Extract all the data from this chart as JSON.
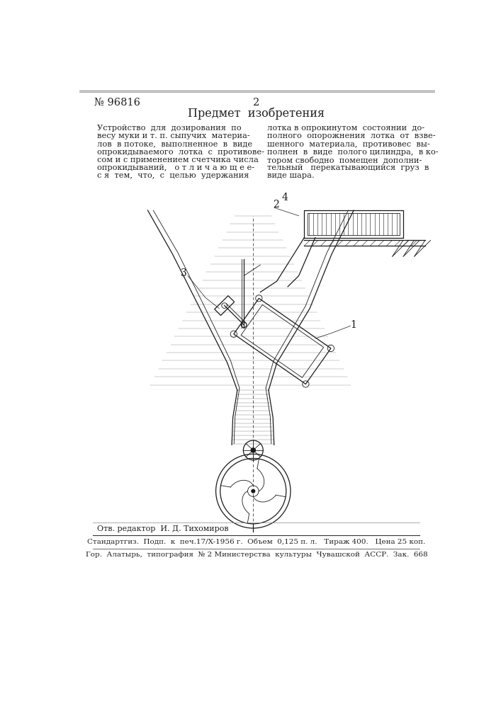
{
  "bg_color": "#ffffff",
  "header_line_color": "#000000",
  "text_color": "#222222",
  "patent_number": "№ 96816",
  "page_number": "2",
  "section_title": "Предмет  изобретения",
  "body_text_col1": "Устройство  для  дозирования  по\nвесу муки и т. п. сыпучих  материа-\nлов  в потоке,  выполненное  в  виде\nопрокидываемого  лотка  с  противове-\nсом и с применением счетчика числа\nопрокидываний,   о т л и ч а ю щ е е-\nс я  тем,  что,  с  целью  удержания",
  "body_text_col2": "лотка в опрокинутом  состоянии  до-\nполного  опорожнения  лотка  от  взве-\nшенного  материала,  противовес  вы-\nполнен  в  виде  полого цилиндра,  в ко-\nтором свободно  помещен  дополни-\nтельный   перекатывающийся  груз  в\nвиде шара.",
  "footer_editor": "Отв. редактор  И. Д. Тихомиров",
  "footer_line1": "Стандартгиз.  Подп.  к  печ.17/X-1956 г.  Объем  0,125 п. л.   Тираж 400.   Цена 25 коп.",
  "footer_line2": "Гор.  Алатырь,  типография  № 2 Министерства  культуры  Чувашской  АССР.  Зак.  668",
  "diagram_label1": "2",
  "diagram_label2": "4",
  "diagram_label3": "3",
  "diagram_label4": "1"
}
